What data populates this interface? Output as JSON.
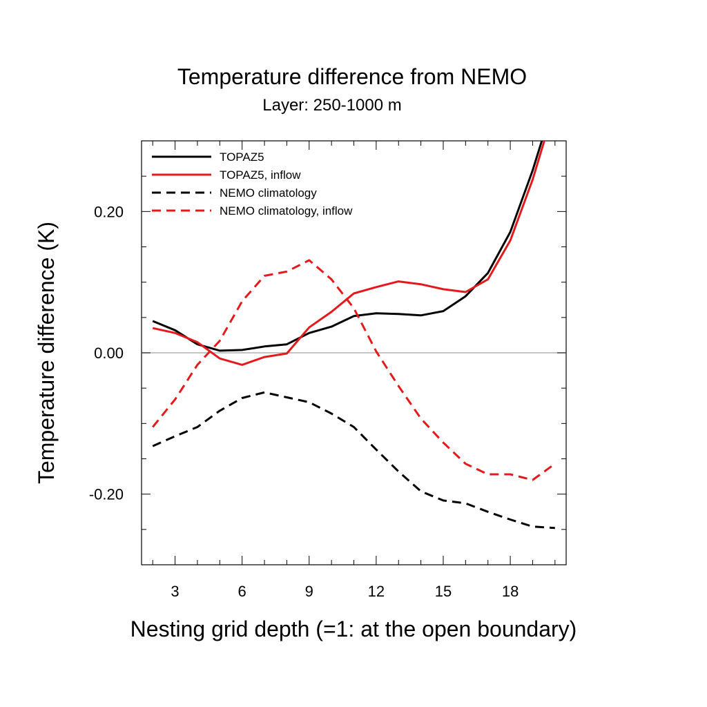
{
  "chart_data": {
    "type": "line",
    "title": "Temperature difference from NEMO",
    "subtitle": "Layer: 250-1000 m",
    "xlabel": "Nesting grid depth (=1: at the open boundary)",
    "ylabel": "Temperature difference (K)",
    "xlim": [
      1.5,
      20.5
    ],
    "ylim": [
      -0.3,
      0.3
    ],
    "x_ticks": [
      3,
      6,
      9,
      12,
      15,
      18
    ],
    "x_tick_labels": [
      "3",
      "6",
      "9",
      "12",
      "15",
      "18"
    ],
    "y_ticks": [
      -0.2,
      0.0,
      0.2
    ],
    "y_tick_labels": [
      "-0.20",
      "0.00",
      "0.20"
    ],
    "zero_line": true,
    "grid": false,
    "legend_position": "top-left",
    "x": [
      2,
      3,
      4,
      5,
      6,
      7,
      8,
      9,
      10,
      11,
      12,
      13,
      14,
      15,
      16,
      17,
      18,
      19,
      20
    ],
    "series": [
      {
        "name": "TOPAZ5",
        "color": "#000000",
        "dash": "solid",
        "values": [
          0.045,
          0.032,
          0.012,
          0.003,
          0.004,
          0.009,
          0.012,
          0.028,
          0.037,
          0.052,
          0.056,
          0.055,
          0.053,
          0.059,
          0.08,
          0.113,
          0.171,
          0.258,
          0.36
        ]
      },
      {
        "name": "TOPAZ5, inflow",
        "color": "#e31a1c",
        "dash": "solid",
        "values": [
          0.035,
          0.028,
          0.015,
          -0.008,
          -0.017,
          -0.006,
          -0.001,
          0.036,
          0.058,
          0.084,
          0.093,
          0.101,
          0.097,
          0.09,
          0.086,
          0.104,
          0.159,
          0.245,
          0.35
        ]
      },
      {
        "name": "NEMO climatology",
        "color": "#000000",
        "dash": "dashed",
        "values": [
          -0.132,
          -0.118,
          -0.105,
          -0.082,
          -0.064,
          -0.056,
          -0.063,
          -0.07,
          -0.086,
          -0.105,
          -0.137,
          -0.168,
          -0.196,
          -0.209,
          -0.213,
          -0.225,
          -0.236,
          -0.246,
          -0.248
        ]
      },
      {
        "name": "NEMO climatology, inflow",
        "color": "#e31a1c",
        "dash": "dashed",
        "values": [
          -0.105,
          -0.066,
          -0.017,
          0.017,
          0.073,
          0.109,
          0.115,
          0.131,
          0.104,
          0.063,
          0.002,
          -0.047,
          -0.093,
          -0.127,
          -0.157,
          -0.172,
          -0.172,
          -0.18,
          -0.157
        ]
      }
    ]
  }
}
